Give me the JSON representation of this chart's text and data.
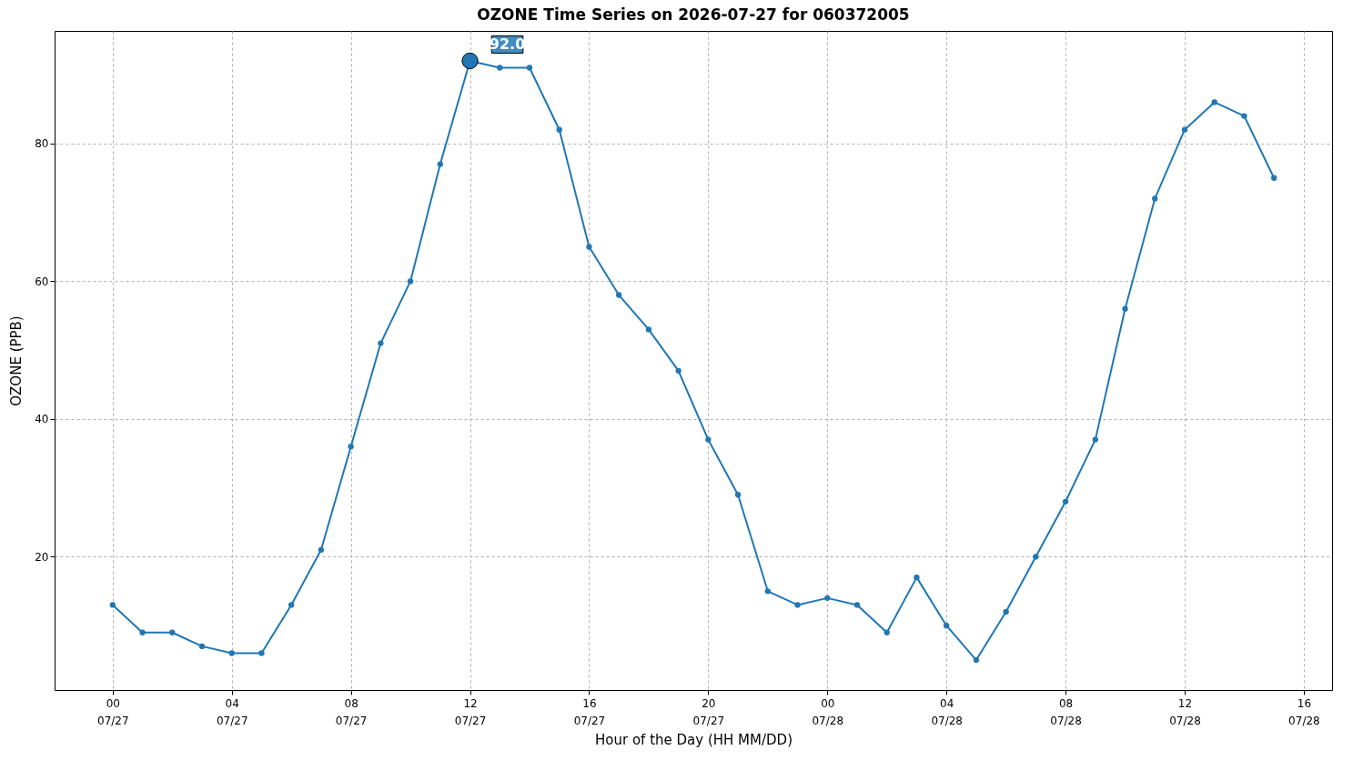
{
  "chart_data": {
    "type": "line",
    "title": "OZONE Time Series on 2026-07-27 for 060372005",
    "xlabel": "Hour of the Day (HH MM/DD)",
    "ylabel": "OZONE (PPB)",
    "x": [
      "2026-07-27T00:00",
      "2026-07-27T01:00",
      "2026-07-27T02:00",
      "2026-07-27T03:00",
      "2026-07-27T04:00",
      "2026-07-27T05:00",
      "2026-07-27T06:00",
      "2026-07-27T07:00",
      "2026-07-27T08:00",
      "2026-07-27T09:00",
      "2026-07-27T10:00",
      "2026-07-27T11:00",
      "2026-07-27T12:00",
      "2026-07-27T13:00",
      "2026-07-27T14:00",
      "2026-07-27T15:00",
      "2026-07-27T16:00",
      "2026-07-27T17:00",
      "2026-07-27T18:00",
      "2026-07-27T19:00",
      "2026-07-27T20:00",
      "2026-07-27T21:00",
      "2026-07-27T22:00",
      "2026-07-27T23:00",
      "2026-07-28T00:00",
      "2026-07-28T01:00",
      "2026-07-28T02:00",
      "2026-07-28T03:00",
      "2026-07-28T04:00",
      "2026-07-28T05:00",
      "2026-07-28T06:00",
      "2026-07-28T07:00",
      "2026-07-28T08:00",
      "2026-07-28T09:00",
      "2026-07-28T10:00",
      "2026-07-28T11:00",
      "2026-07-28T12:00",
      "2026-07-28T13:00",
      "2026-07-28T14:00",
      "2026-07-28T15:00"
    ],
    "series": [
      {
        "color": "#1f77b4",
        "values": [
          13,
          9,
          9,
          7,
          6,
          6,
          13,
          21,
          36,
          51,
          60,
          77,
          92,
          91,
          91,
          82,
          65,
          58,
          53,
          47,
          37,
          29,
          15,
          13,
          14,
          13,
          9,
          17,
          10,
          5,
          12,
          20,
          28,
          37,
          56,
          72,
          82,
          86,
          84,
          75
        ]
      }
    ],
    "xlim": [
      "2026-07-26T22:03",
      "2026-07-28T16:57"
    ],
    "xticks": [
      {
        "value": "2026-07-27T00:00",
        "label": "00\n07/27"
      },
      {
        "value": "2026-07-27T04:00",
        "label": "04\n07/27"
      },
      {
        "value": "2026-07-27T08:00",
        "label": "08\n07/27"
      },
      {
        "value": "2026-07-27T12:00",
        "label": "12\n07/27"
      },
      {
        "value": "2026-07-27T16:00",
        "label": "16\n07/27"
      },
      {
        "value": "2026-07-27T20:00",
        "label": "20\n07/27"
      },
      {
        "value": "2026-07-28T00:00",
        "label": "00\n07/28"
      },
      {
        "value": "2026-07-28T04:00",
        "label": "04\n07/28"
      },
      {
        "value": "2026-07-28T08:00",
        "label": "08\n07/28"
      },
      {
        "value": "2026-07-28T12:00",
        "label": "12\n07/28"
      },
      {
        "value": "2026-07-28T16:00",
        "label": "16\n07/28"
      }
    ],
    "ylim": [
      0.65,
      96.35
    ],
    "yticks": [
      20,
      40,
      60,
      80
    ],
    "annotations": [
      {
        "text": "92.0",
        "x": "2026-07-27T12:00",
        "y": 92
      }
    ],
    "grid": true,
    "marker": "circle",
    "line_style": "solid"
  }
}
